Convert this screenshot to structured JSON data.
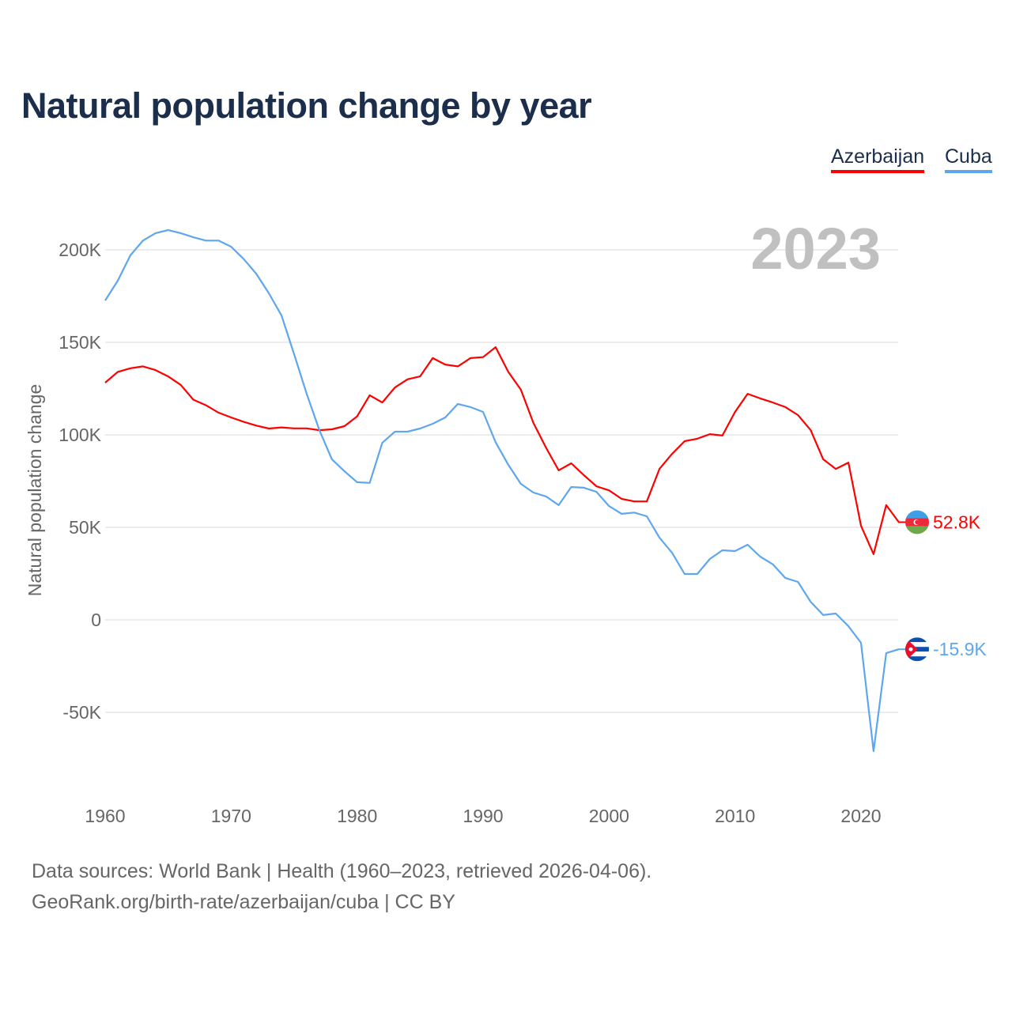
{
  "chart_data": {
    "type": "line",
    "title": "Natural population change by year",
    "xlabel": "",
    "ylabel": "Natural population change",
    "year_label": "2023",
    "xlim": [
      1960,
      2023
    ],
    "ylim": [
      -75000,
      215000
    ],
    "grid": true,
    "legend_position": "top-right",
    "x_ticks": [
      1960,
      1970,
      1980,
      1990,
      2000,
      2010,
      2020
    ],
    "x_tick_labels": [
      "1960",
      "1970",
      "1980",
      "1990",
      "2000",
      "2010",
      "2020"
    ],
    "y_ticks": [
      -50000,
      0,
      50000,
      100000,
      150000,
      200000
    ],
    "y_tick_labels": [
      "-50K",
      "0",
      "50K",
      "100K",
      "150K",
      "200K"
    ],
    "x": [
      1960,
      1961,
      1962,
      1963,
      1964,
      1965,
      1966,
      1967,
      1968,
      1969,
      1970,
      1971,
      1972,
      1973,
      1974,
      1975,
      1976,
      1977,
      1978,
      1979,
      1980,
      1981,
      1982,
      1983,
      1984,
      1985,
      1986,
      1987,
      1988,
      1989,
      1990,
      1991,
      1992,
      1993,
      1994,
      1995,
      1996,
      1997,
      1998,
      1999,
      2000,
      2001,
      2002,
      2003,
      2004,
      2005,
      2006,
      2007,
      2008,
      2009,
      2010,
      2011,
      2012,
      2013,
      2014,
      2015,
      2016,
      2017,
      2018,
      2019,
      2020,
      2021,
      2022,
      2023
    ],
    "series": [
      {
        "name": "Azerbaijan",
        "color": "#ff0000",
        "end_label": "52.8K",
        "values": [
          128200,
          134000,
          136000,
          137000,
          135000,
          131600,
          127000,
          119000,
          116000,
          112000,
          109400,
          107000,
          105000,
          103400,
          104000,
          103500,
          103500,
          102500,
          103000,
          104700,
          110000,
          121400,
          117500,
          125600,
          130000,
          131600,
          141500,
          138000,
          137000,
          141500,
          142000,
          147400,
          134000,
          124400,
          106400,
          93000,
          80800,
          84600,
          78200,
          72200,
          70000,
          65400,
          64000,
          64000,
          81600,
          89700,
          96600,
          97900,
          100400,
          99600,
          112400,
          122200,
          119700,
          117500,
          115000,
          110700,
          102600,
          86800,
          81600,
          85000,
          50900,
          35500,
          62000,
          52800
        ]
      },
      {
        "name": "Cuba",
        "color": "#5ea6ee",
        "end_label": "-15.9K",
        "values": [
          172600,
          183300,
          197000,
          205000,
          209000,
          210700,
          209000,
          206800,
          205000,
          205000,
          201700,
          195000,
          187000,
          176500,
          164500,
          143600,
          122200,
          102600,
          86800,
          80300,
          74400,
          74000,
          95700,
          101700,
          101700,
          103400,
          106000,
          109400,
          116700,
          115000,
          112400,
          96000,
          83800,
          73500,
          68800,
          66700,
          62000,
          71800,
          71400,
          69200,
          61500,
          57300,
          58000,
          56000,
          44400,
          36300,
          24800,
          24800,
          32900,
          37600,
          37200,
          40600,
          34200,
          30000,
          22600,
          20500,
          9800,
          2600,
          3400,
          -3400,
          -12400,
          -71000,
          -18000,
          -15900
        ]
      }
    ]
  },
  "footer": {
    "line1": "Data sources: World Bank | Health (1960–2023, retrieved 2026-04-06).",
    "line2": "GeoRank.org/birth-rate/azerbaijan/cuba | CC BY"
  }
}
